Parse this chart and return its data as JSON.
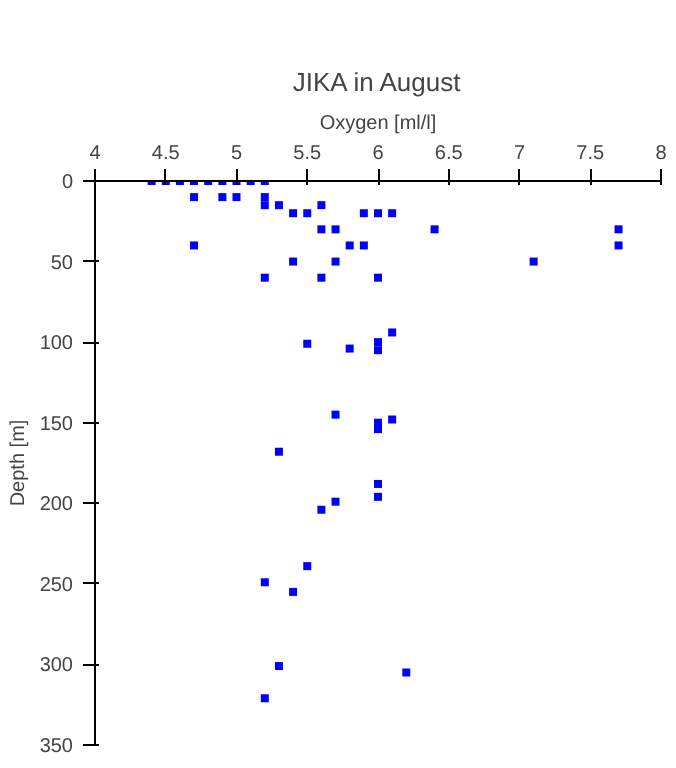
{
  "chart_data": {
    "type": "scatter",
    "title": "JIKA in August",
    "xlabel": "Oxygen [ml/l]",
    "ylabel": "Depth [m]",
    "x": [
      4.4,
      4.5,
      4.6,
      4.7,
      4.8,
      4.9,
      5.0,
      5.1,
      5.2,
      4.7,
      4.9,
      5.0,
      5.2,
      5.2,
      5.3,
      5.6,
      5.4,
      5.5,
      5.9,
      6.0,
      6.1,
      5.6,
      5.7,
      6.4,
      7.7,
      4.7,
      5.8,
      5.9,
      7.7,
      5.4,
      5.7,
      7.1,
      5.2,
      5.6,
      6.0,
      6.1,
      5.5,
      5.8,
      6.0,
      6.0,
      5.7,
      6.0,
      6.0,
      6.1,
      5.3,
      6.0,
      6.0,
      5.7,
      5.6,
      5.5,
      5.2,
      5.4,
      5.3,
      6.2,
      5.2
    ],
    "series": [
      {
        "color": "#0000ff",
        "values": [
          0,
          0,
          0,
          0,
          0,
          0,
          0,
          0,
          0,
          10,
          10,
          10,
          10,
          15,
          15,
          15,
          20,
          20,
          20,
          20,
          20,
          30,
          30,
          30,
          30,
          40,
          40,
          40,
          40,
          50,
          50,
          50,
          60,
          60,
          60,
          94,
          101,
          104,
          100,
          105,
          145,
          150,
          154,
          148,
          168,
          188,
          196,
          199,
          204,
          239,
          249,
          255,
          301,
          305,
          321
        ]
      }
    ],
    "xlim": [
      4,
      8
    ],
    "xticks": [
      4,
      4.5,
      5,
      5.5,
      6,
      6.5,
      7,
      7.5,
      8
    ],
    "ylim": [
      350,
      0
    ],
    "yticks": [
      0,
      50,
      100,
      150,
      200,
      250,
      300,
      350
    ],
    "grid": false,
    "marker": "square"
  }
}
